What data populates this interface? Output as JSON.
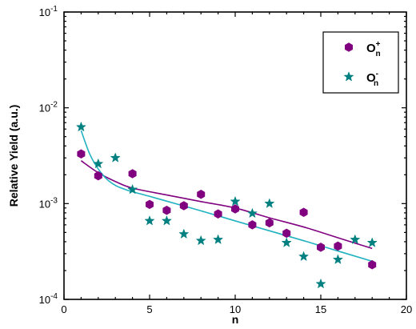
{
  "chart_data": {
    "type": "scatter",
    "xlabel": "n",
    "ylabel": "Relative Yield  (a.u.)",
    "xlim": [
      0,
      20
    ],
    "ylim": [
      0.0001,
      0.1
    ],
    "yscale": "log",
    "xticks": [
      0,
      5,
      10,
      15,
      20
    ],
    "xtick_labels": [
      "0",
      "5",
      "10",
      "15",
      "20"
    ],
    "yticks": [
      0.0001,
      0.001,
      0.01,
      0.1
    ],
    "ytick_labels": [
      {
        "base": "10",
        "exp": "-4"
      },
      {
        "base": "10",
        "exp": "-3"
      },
      {
        "base": "10",
        "exp": "-2"
      },
      {
        "base": "10",
        "exp": "-1"
      }
    ],
    "grid": false,
    "legend_position": "top-right",
    "series": [
      {
        "name": "O_n^+",
        "legend_base": "O",
        "legend_sub": "n",
        "legend_sup": "+",
        "marker": "hexagon",
        "color": "#800080",
        "x": [
          1,
          2,
          4,
          5,
          6,
          7,
          8,
          9,
          10,
          11,
          12,
          13,
          14,
          15,
          16,
          18
        ],
        "y": [
          0.0033,
          0.00195,
          0.00205,
          0.00098,
          0.00085,
          0.00095,
          0.00125,
          0.00078,
          0.00088,
          0.0006,
          0.00063,
          0.00049,
          0.00081,
          0.00035,
          0.00036,
          0.00023
        ],
        "fit": {
          "x": [
            1,
            2,
            3,
            4,
            6,
            8,
            10,
            12,
            14,
            16,
            18
          ],
          "y": [
            0.0028,
            0.0021,
            0.0017,
            0.00145,
            0.00123,
            0.00105,
            0.0009,
            0.00071,
            0.00057,
            0.00044,
            0.00034
          ]
        }
      },
      {
        "name": "O_n^-",
        "legend_base": "O",
        "legend_sub": "n",
        "legend_sup": "-",
        "marker": "star",
        "color": "#008080",
        "fit_color": "#20b2c0",
        "x": [
          1,
          2,
          3,
          4,
          5,
          6,
          7,
          8,
          9,
          10,
          11,
          12,
          13,
          14,
          15,
          16,
          17,
          18
        ],
        "y": [
          0.0063,
          0.0026,
          0.003,
          0.0014,
          0.00066,
          0.00066,
          0.00048,
          0.00041,
          0.00042,
          0.00105,
          0.00079,
          0.001,
          0.00039,
          0.00028,
          0.000145,
          0.00026,
          0.00042,
          0.00039
        ],
        "fit": {
          "x": [
            1,
            1.5,
            2,
            2.5,
            3,
            3.5,
            4,
            5,
            6,
            8,
            10,
            12,
            14,
            16,
            18
          ],
          "y": [
            0.0058,
            0.0033,
            0.0023,
            0.0018,
            0.00155,
            0.00142,
            0.00133,
            0.00119,
            0.00106,
            0.00084,
            0.00066,
            0.00052,
            0.00041,
            0.00032,
            0.00025
          ]
        }
      }
    ]
  }
}
